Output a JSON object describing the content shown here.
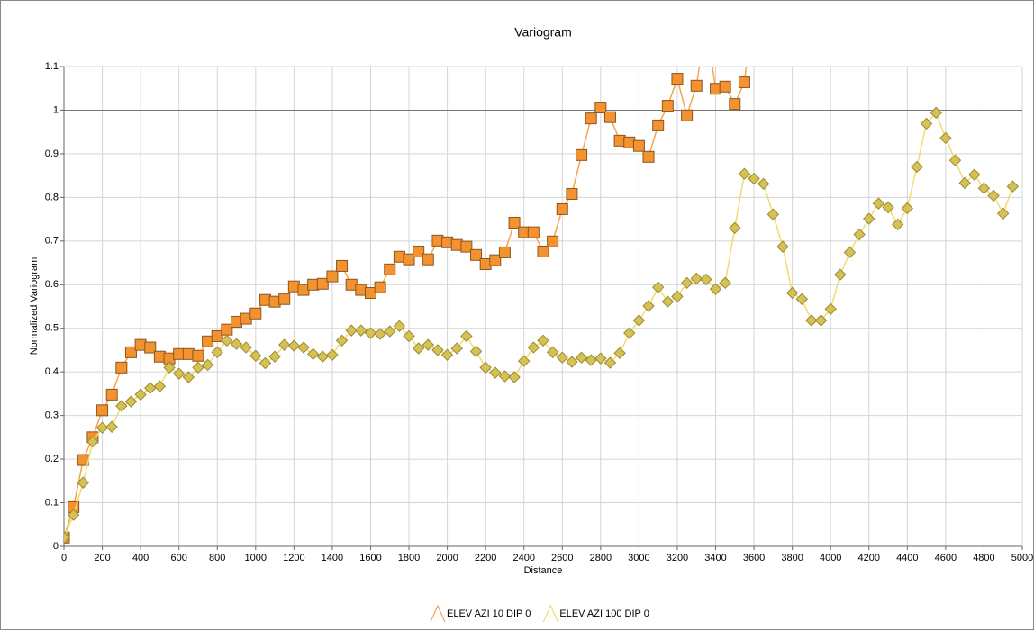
{
  "chart_data": {
    "type": "line",
    "title": "Variogram",
    "x_label": "Distance",
    "y_label": "Normalized Variogram",
    "x": [
      0,
      50,
      100,
      150,
      200,
      250,
      300,
      350,
      400,
      450,
      500,
      550,
      600,
      650,
      700,
      750,
      800,
      850,
      900,
      950,
      1000,
      1050,
      1100,
      1150,
      1200,
      1250,
      1300,
      1350,
      1400,
      1450,
      1500,
      1550,
      1600,
      1650,
      1700,
      1750,
      1800,
      1850,
      1900,
      1950,
      2000,
      2050,
      2100,
      2150,
      2200,
      2250,
      2300,
      2350,
      2400,
      2450,
      2500,
      2550,
      2600,
      2650,
      2700,
      2750,
      2800,
      2850,
      2900,
      2950,
      3000,
      3050,
      3100,
      3150,
      3200,
      3250,
      3300,
      3350,
      3400,
      3450,
      3500,
      3550,
      3600,
      3650,
      3700,
      3750,
      3800,
      3850,
      3900,
      3950,
      4000,
      4050,
      4100,
      4150,
      4200,
      4250,
      4300,
      4350,
      4400,
      4450,
      4500,
      4550,
      4600,
      4650,
      4700,
      4750,
      4800,
      4850,
      4900,
      4950
    ],
    "series": [
      {
        "name": "ELEV AZI 10 DIP 0",
        "color": "#f7a54a",
        "marker_color": "#f4922f",
        "marker": "square",
        "values": [
          0.02,
          0.09,
          0.198,
          0.25,
          0.312,
          0.348,
          0.41,
          0.445,
          0.462,
          0.456,
          0.435,
          0.431,
          0.441,
          0.441,
          0.437,
          0.47,
          0.482,
          0.497,
          0.515,
          0.522,
          0.534,
          0.565,
          0.561,
          0.567,
          0.596,
          0.588,
          0.6,
          0.602,
          0.619,
          0.643,
          0.6,
          0.588,
          0.581,
          0.594,
          0.635,
          0.664,
          0.658,
          0.676,
          0.658,
          0.701,
          0.697,
          0.691,
          0.687,
          0.668,
          0.647,
          0.656,
          0.674,
          0.742,
          0.72,
          0.72,
          0.676,
          0.699,
          0.773,
          0.808,
          0.897,
          0.981,
          1.006,
          0.984,
          0.93,
          0.926,
          0.918,
          0.893,
          0.965,
          1.01,
          1.072,
          0.988,
          1.056,
          1.2,
          1.049,
          1.054,
          1.014,
          1.064,
          1.25,
          null,
          null,
          null,
          null,
          null,
          null,
          null,
          null,
          null,
          null,
          null,
          null,
          null,
          null,
          null,
          null,
          null,
          null,
          null,
          null,
          null,
          null,
          null,
          null,
          null,
          null,
          null
        ]
      },
      {
        "name": "ELEV AZI 100 DIP 0",
        "color": "#f0dc70",
        "marker_color": "#d6c254",
        "marker": "diamond",
        "values": [
          0.02,
          0.072,
          0.146,
          0.24,
          0.272,
          0.274,
          0.322,
          0.332,
          0.348,
          0.363,
          0.367,
          0.41,
          0.396,
          0.388,
          0.41,
          0.416,
          0.445,
          0.472,
          0.464,
          0.456,
          0.437,
          0.42,
          0.435,
          0.462,
          0.46,
          0.456,
          0.441,
          0.435,
          0.439,
          0.472,
          0.495,
          0.495,
          0.489,
          0.487,
          0.493,
          0.505,
          0.482,
          0.454,
          0.462,
          0.45,
          0.439,
          0.454,
          0.482,
          0.447,
          0.41,
          0.398,
          0.39,
          0.388,
          0.425,
          0.456,
          0.472,
          0.445,
          0.433,
          0.423,
          0.433,
          0.427,
          0.431,
          0.421,
          0.443,
          0.489,
          0.518,
          0.551,
          0.594,
          0.561,
          0.573,
          0.604,
          0.614,
          0.612,
          0.59,
          0.604,
          0.73,
          0.854,
          0.843,
          0.831,
          0.761,
          0.687,
          0.581,
          0.567,
          0.518,
          0.518,
          0.544,
          0.623,
          0.674,
          0.715,
          0.751,
          0.786,
          0.777,
          0.738,
          0.775,
          0.87,
          0.969,
          0.994,
          0.936,
          0.885,
          0.833,
          0.852,
          0.821,
          0.804,
          0.763,
          0.825
        ]
      }
    ],
    "xlim": [
      0,
      5000
    ],
    "xticks": [
      0,
      200,
      400,
      600,
      800,
      1000,
      1200,
      1400,
      1600,
      1800,
      2000,
      2200,
      2400,
      2600,
      2800,
      3000,
      3200,
      3400,
      3600,
      3800,
      4000,
      4200,
      4400,
      4600,
      4800,
      5000
    ],
    "ylim": [
      0,
      1.1
    ],
    "yticks": [
      0,
      0.1,
      0.2,
      0.3,
      0.4,
      0.5,
      0.6,
      0.7,
      0.8,
      0.9,
      1,
      1.1
    ],
    "reference_line": 1,
    "grid": true,
    "legend": "bottom"
  }
}
